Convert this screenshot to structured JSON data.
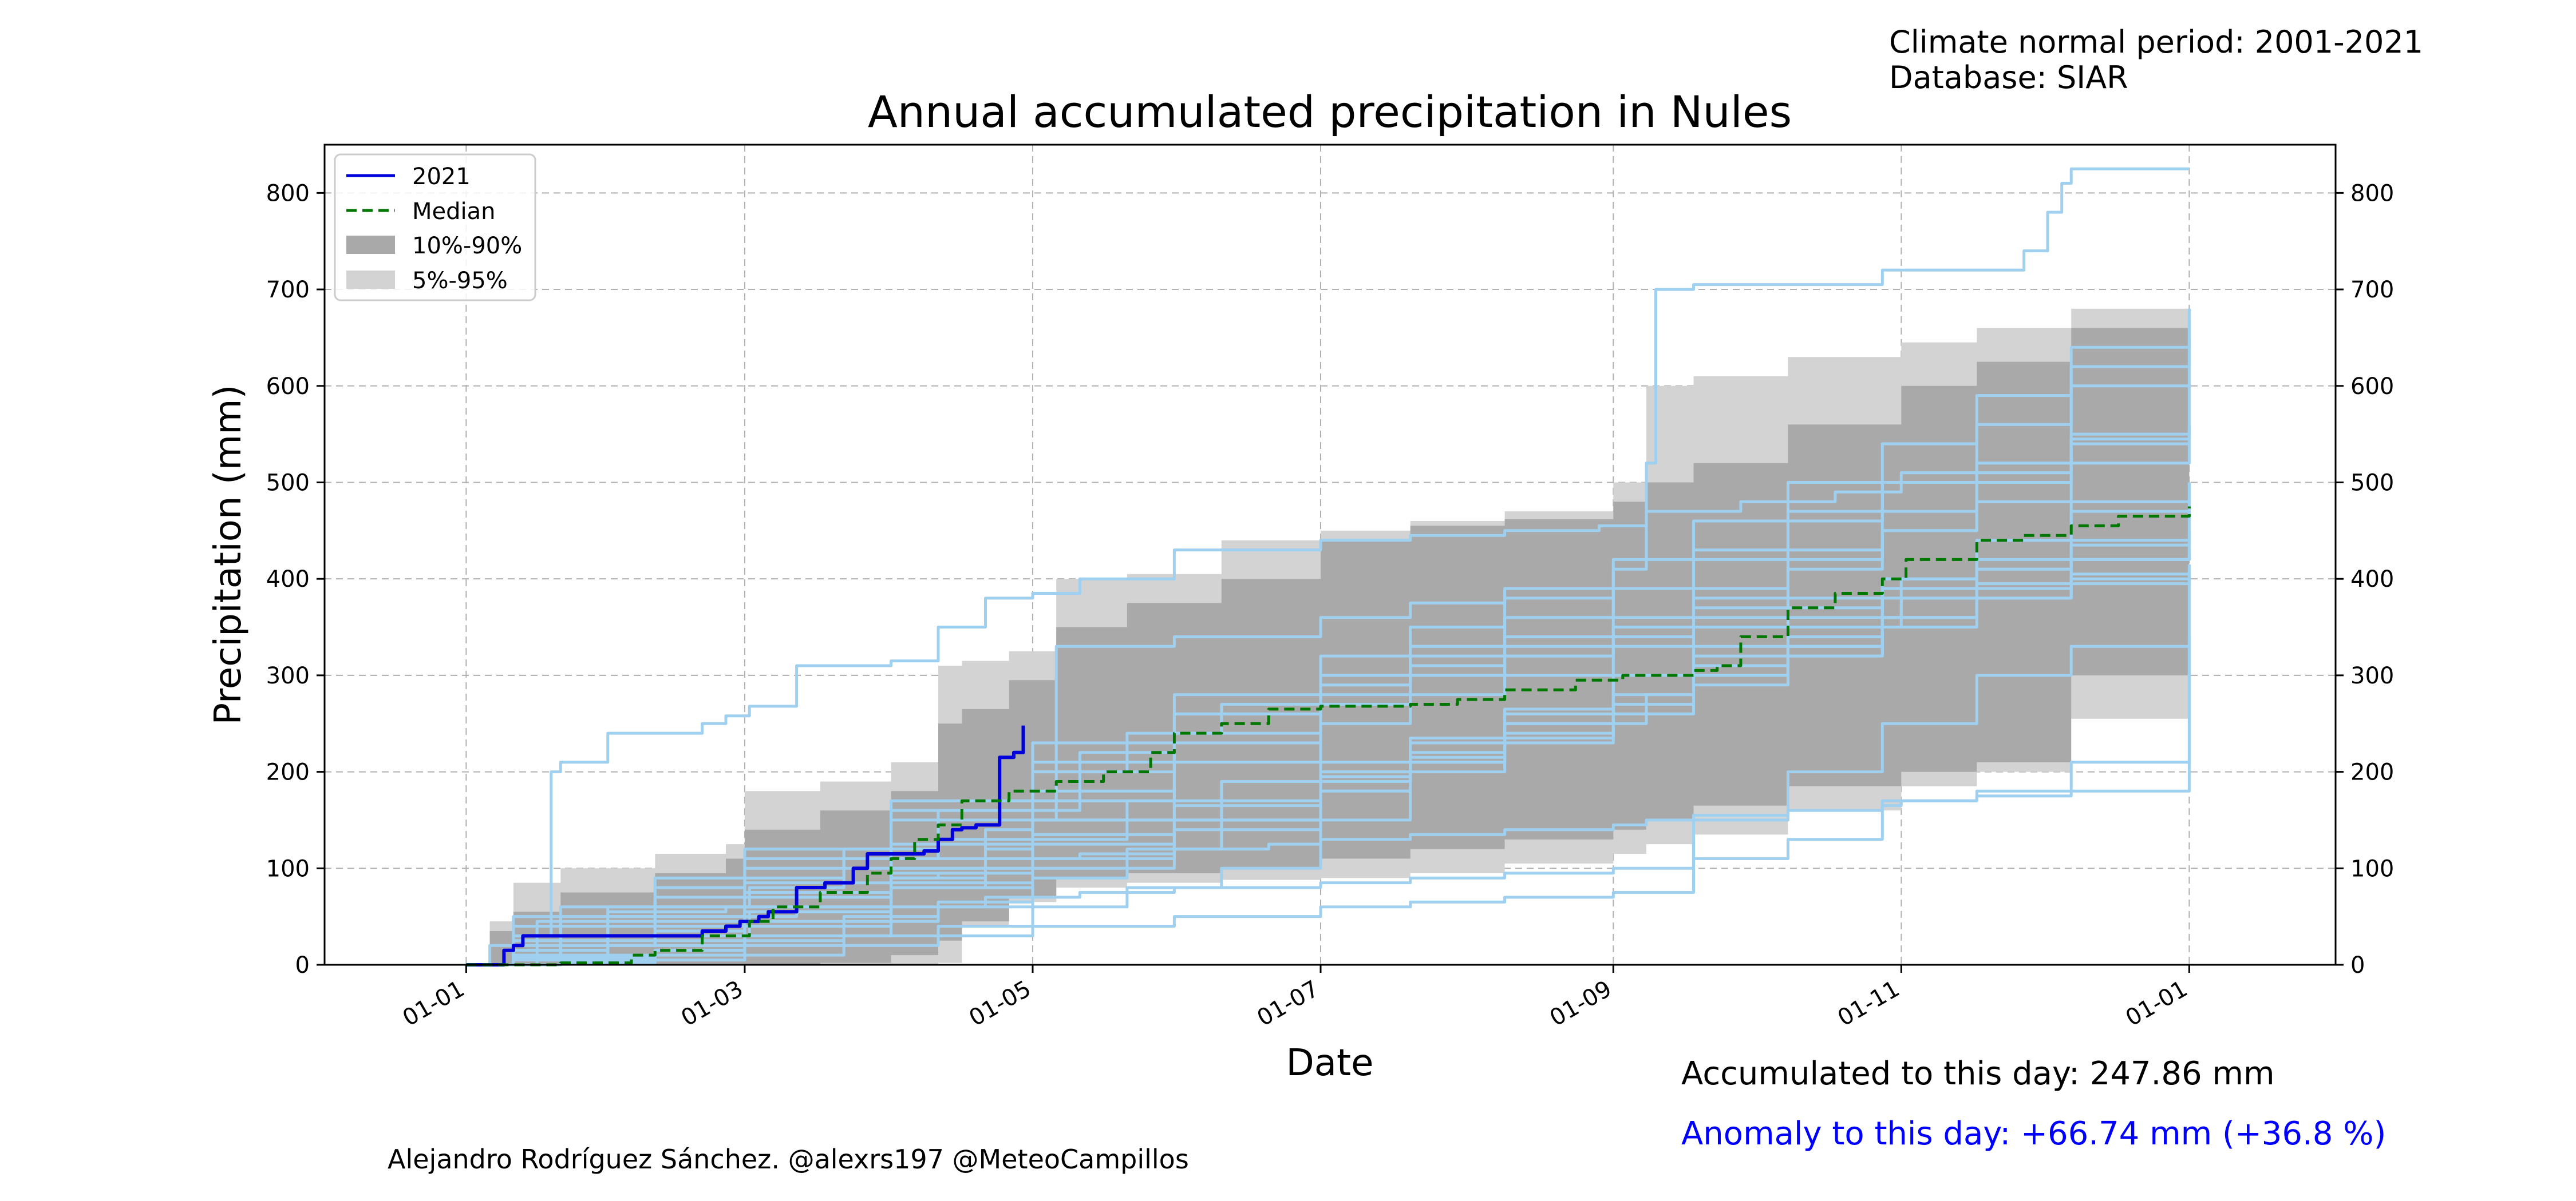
{
  "header": {
    "normal_period": "Climate normal period: 2001-2021",
    "database": "Database: SIAR"
  },
  "footer": {
    "accumulated": "Accumulated to this day: 247.86 mm",
    "anomaly": "Anomaly to this day: +66.74 mm (+36.8 %)",
    "credit": "Alejandro Rodríguez Sánchez. @alexrs197 @MeteoCampillos"
  },
  "colors": {
    "current_year": "#0000dd",
    "median": "#007700",
    "band_10_90": "#a9a9a9",
    "band_5_95": "#d3d3d3",
    "historical_years": "#9fd0f0",
    "anomaly_text": "#0000ff"
  },
  "chart_data": {
    "type": "line",
    "title": "Annual accumulated precipitation in Nules",
    "xlabel": "Date",
    "ylabel": "Precipitation (mm)",
    "xlim": [
      -30,
      396
    ],
    "ylim": [
      0,
      850
    ],
    "x_ticks": [
      {
        "day": 0,
        "label": "01-01"
      },
      {
        "day": 59,
        "label": "01-03"
      },
      {
        "day": 120,
        "label": "01-05"
      },
      {
        "day": 181,
        "label": "01-07"
      },
      {
        "day": 243,
        "label": "01-09"
      },
      {
        "day": 304,
        "label": "01-11"
      },
      {
        "day": 365,
        "label": "01-01"
      }
    ],
    "y_ticks": [
      0,
      100,
      200,
      300,
      400,
      500,
      600,
      700,
      800
    ],
    "grid": true,
    "legend_position": "top-left",
    "legend": [
      "2021",
      "Median",
      "10%-90%",
      "5%-95%"
    ],
    "bands": [
      {
        "name": "5%-95%",
        "x": [
          0,
          5,
          10,
          20,
          40,
          55,
          59,
          75,
          90,
          100,
          105,
          115,
          125,
          140,
          160,
          181,
          200,
          220,
          243,
          250,
          260,
          280,
          304,
          320,
          340,
          365
        ],
        "upper": [
          0,
          45,
          85,
          100,
          115,
          125,
          180,
          190,
          210,
          310,
          315,
          325,
          400,
          405,
          440,
          450,
          460,
          470,
          500,
          600,
          610,
          630,
          645,
          660,
          680,
          685
        ],
        "lower": [
          0,
          0,
          0,
          0,
          0,
          0,
          0,
          0,
          0,
          2,
          40,
          65,
          80,
          85,
          88,
          90,
          95,
          105,
          115,
          125,
          135,
          160,
          185,
          200,
          255,
          270
        ]
      },
      {
        "name": "10%-90%",
        "x": [
          0,
          5,
          10,
          20,
          40,
          55,
          59,
          75,
          90,
          100,
          105,
          115,
          125,
          140,
          160,
          181,
          200,
          220,
          243,
          250,
          260,
          280,
          304,
          320,
          340,
          365
        ],
        "upper": [
          0,
          35,
          55,
          75,
          95,
          110,
          140,
          160,
          180,
          250,
          265,
          295,
          350,
          375,
          400,
          440,
          455,
          462,
          480,
          500,
          520,
          560,
          600,
          625,
          660,
          670
        ],
        "lower": [
          0,
          0,
          0,
          0,
          0,
          0,
          0,
          2,
          10,
          25,
          45,
          70,
          90,
          95,
          100,
          110,
          120,
          130,
          140,
          150,
          165,
          185,
          200,
          210,
          300,
          365
        ]
      }
    ],
    "series": [
      {
        "name": "2021",
        "role": "current",
        "x": [
          0,
          5,
          8,
          10,
          12,
          25,
          40,
          50,
          55,
          58,
          62,
          64,
          69,
          70,
          75,
          76,
          80,
          82,
          85,
          88,
          90,
          92,
          95,
          97,
          100,
          103,
          105,
          108,
          110,
          112,
          113,
          116,
          118
        ],
        "y": [
          0,
          0,
          15,
          20,
          30,
          30,
          30,
          35,
          40,
          45,
          50,
          55,
          55,
          80,
          80,
          85,
          85,
          100,
          115,
          115,
          115,
          115,
          115,
          118,
          130,
          140,
          142,
          145,
          145,
          145,
          215,
          220,
          248
        ]
      },
      {
        "name": "Median",
        "role": "median",
        "x": [
          0,
          10,
          20,
          35,
          40,
          50,
          60,
          65,
          75,
          85,
          90,
          95,
          100,
          105,
          115,
          125,
          135,
          145,
          150,
          160,
          170,
          181,
          200,
          210,
          220,
          235,
          245,
          260,
          265,
          270,
          280,
          290,
          300,
          305,
          320,
          330,
          340,
          350,
          365
        ],
        "y": [
          0,
          0,
          2,
          10,
          15,
          30,
          45,
          60,
          75,
          95,
          110,
          130,
          145,
          170,
          180,
          190,
          200,
          220,
          240,
          250,
          265,
          268,
          270,
          275,
          285,
          295,
          300,
          305,
          310,
          340,
          370,
          385,
          400,
          420,
          440,
          445,
          455,
          465,
          475
        ]
      }
    ],
    "historical_years": [
      {
        "x": [
          0,
          10,
          18,
          20,
          30,
          50,
          55,
          60,
          70,
          90,
          100,
          110,
          120,
          130,
          150,
          181,
          200,
          220,
          240,
          250,
          252,
          260,
          300,
          330,
          335,
          338,
          340,
          365
        ],
        "y": [
          0,
          30,
          200,
          210,
          240,
          250,
          258,
          268,
          310,
          315,
          350,
          380,
          385,
          400,
          430,
          440,
          445,
          450,
          455,
          520,
          700,
          705,
          720,
          740,
          780,
          810,
          825,
          825
        ]
      },
      {
        "x": [
          0,
          5,
          10,
          30,
          55,
          60,
          80,
          90,
          100,
          110,
          120,
          130,
          150,
          170,
          181,
          200,
          220,
          243,
          250,
          260,
          280,
          300,
          304,
          320,
          340,
          365
        ],
        "y": [
          0,
          20,
          40,
          55,
          60,
          80,
          85,
          90,
          95,
          100,
          110,
          115,
          120,
          125,
          130,
          135,
          140,
          145,
          150,
          155,
          160,
          165,
          170,
          175,
          180,
          410
        ]
      },
      {
        "x": [
          0,
          10,
          20,
          40,
          60,
          80,
          100,
          110,
          130,
          150,
          181,
          200,
          220,
          243,
          260,
          280,
          300,
          320,
          340,
          365
        ],
        "y": [
          0,
          10,
          20,
          30,
          40,
          50,
          60,
          70,
          75,
          80,
          85,
          90,
          95,
          100,
          110,
          130,
          170,
          180,
          210,
          340
        ]
      },
      {
        "x": [
          0,
          10,
          30,
          59,
          60,
          90,
          110,
          120,
          125,
          150,
          181,
          200,
          220,
          243,
          250,
          270,
          290,
          304,
          320,
          340,
          365
        ],
        "y": [
          0,
          5,
          20,
          40,
          55,
          80,
          120,
          150,
          330,
          340,
          360,
          375,
          390,
          410,
          470,
          480,
          490,
          510,
          520,
          540,
          560
        ]
      },
      {
        "x": [
          0,
          15,
          30,
          59,
          80,
          100,
          120,
          140,
          160,
          181,
          200,
          220,
          243,
          260,
          280,
          300,
          304,
          320,
          340,
          365
        ],
        "y": [
          0,
          5,
          10,
          20,
          30,
          40,
          60,
          80,
          100,
          150,
          200,
          250,
          270,
          300,
          330,
          360,
          400,
          440,
          470,
          500
        ]
      },
      {
        "x": [
          0,
          20,
          40,
          59,
          80,
          100,
          120,
          140,
          160,
          181,
          200,
          220,
          243,
          250,
          260,
          280,
          300,
          320,
          340,
          365
        ],
        "y": [
          0,
          8,
          15,
          25,
          45,
          65,
          90,
          120,
          150,
          180,
          210,
          230,
          250,
          280,
          300,
          320,
          350,
          380,
          420,
          450
        ]
      },
      {
        "x": [
          0,
          10,
          30,
          59,
          70,
          90,
          110,
          120,
          140,
          160,
          181,
          200,
          220,
          243,
          260,
          280,
          300,
          304,
          320,
          340,
          365
        ],
        "y": [
          0,
          15,
          30,
          50,
          70,
          90,
          110,
          130,
          150,
          170,
          195,
          215,
          235,
          260,
          290,
          320,
          350,
          380,
          410,
          440,
          470
        ]
      },
      {
        "x": [
          0,
          20,
          40,
          59,
          80,
          100,
          120,
          150,
          181,
          200,
          220,
          243,
          260,
          280,
          300,
          320,
          340,
          365
        ],
        "y": [
          0,
          2,
          5,
          10,
          20,
          30,
          40,
          50,
          60,
          65,
          70,
          75,
          150,
          200,
          250,
          300,
          330,
          335
        ]
      },
      {
        "x": [
          0,
          10,
          30,
          59,
          80,
          100,
          120,
          140,
          160,
          181,
          200,
          220,
          243,
          260,
          280,
          300,
          320,
          340,
          365
        ],
        "y": [
          0,
          25,
          60,
          90,
          110,
          130,
          150,
          170,
          190,
          210,
          230,
          250,
          270,
          300,
          330,
          360,
          390,
          420,
          430
        ]
      },
      {
        "x": [
          0,
          10,
          30,
          59,
          90,
          110,
          120,
          140,
          160,
          181,
          200,
          220,
          243,
          260,
          280,
          300,
          320,
          340,
          365
        ],
        "y": [
          0,
          30,
          50,
          70,
          100,
          140,
          200,
          240,
          270,
          300,
          320,
          340,
          360,
          380,
          420,
          450,
          480,
          520,
          540
        ]
      },
      {
        "x": [
          0,
          20,
          40,
          59,
          80,
          100,
          130,
          150,
          181,
          200,
          220,
          243,
          260,
          280,
          300,
          320,
          340,
          365
        ],
        "y": [
          0,
          40,
          60,
          85,
          120,
          160,
          220,
          260,
          290,
          310,
          330,
          350,
          390,
          430,
          470,
          500,
          550,
          600
        ]
      },
      {
        "x": [
          0,
          10,
          40,
          59,
          90,
          120,
          150,
          181,
          200,
          220,
          243,
          260,
          280,
          300,
          320,
          340,
          365
        ],
        "y": [
          0,
          50,
          70,
          100,
          150,
          200,
          240,
          280,
          300,
          320,
          340,
          370,
          410,
          450,
          510,
          600,
          650
        ]
      },
      {
        "x": [
          0,
          15,
          40,
          59,
          90,
          120,
          150,
          181,
          200,
          220,
          243,
          260,
          280,
          300,
          320,
          340,
          365
        ],
        "y": [
          0,
          45,
          80,
          110,
          160,
          210,
          260,
          300,
          330,
          360,
          390,
          420,
          460,
          500,
          560,
          620,
          670
        ]
      },
      {
        "x": [
          0,
          20,
          40,
          59,
          90,
          120,
          150,
          181,
          200,
          220,
          243,
          260,
          280,
          300,
          320,
          340,
          365
        ],
        "y": [
          0,
          60,
          90,
          120,
          170,
          230,
          280,
          320,
          350,
          380,
          420,
          460,
          500,
          540,
          590,
          640,
          680
        ]
      },
      {
        "x": [
          0,
          10,
          30,
          59,
          90,
          120,
          150,
          181,
          200,
          220,
          243,
          260,
          280,
          300,
          320,
          340,
          365
        ],
        "y": [
          0,
          10,
          20,
          40,
          80,
          110,
          150,
          190,
          220,
          250,
          280,
          300,
          330,
          360,
          380,
          400,
          410
        ]
      },
      {
        "x": [
          0,
          10,
          30,
          59,
          90,
          120,
          150,
          181,
          200,
          220,
          243,
          260,
          280,
          300,
          320,
          340,
          365
        ],
        "y": [
          0,
          15,
          30,
          55,
          95,
          135,
          170,
          200,
          230,
          260,
          300,
          320,
          340,
          360,
          380,
          395,
          400
        ]
      },
      {
        "x": [
          0,
          10,
          40,
          59,
          90,
          120,
          150,
          181,
          200,
          220,
          243,
          260,
          280,
          300,
          320,
          340,
          365
        ],
        "y": [
          0,
          20,
          45,
          60,
          100,
          150,
          210,
          250,
          280,
          300,
          330,
          350,
          370,
          390,
          410,
          420,
          430
        ]
      },
      {
        "x": [
          0,
          20,
          40,
          59,
          90,
          120,
          150,
          181,
          200,
          220,
          243,
          260,
          280,
          300,
          320,
          340,
          365
        ],
        "y": [
          0,
          5,
          15,
          30,
          60,
          100,
          140,
          180,
          210,
          240,
          270,
          310,
          350,
          400,
          440,
          480,
          500
        ]
      },
      {
        "x": [
          0,
          20,
          40,
          59,
          90,
          120,
          150,
          181,
          200,
          220,
          243,
          260,
          280,
          300,
          320,
          340,
          365
        ],
        "y": [
          0,
          20,
          35,
          60,
          110,
          170,
          230,
          270,
          300,
          320,
          340,
          360,
          380,
          400,
          420,
          435,
          440
        ]
      },
      {
        "x": [
          0,
          10,
          30,
          59,
          90,
          120,
          150,
          181,
          200,
          220,
          243,
          260,
          280,
          300,
          320,
          340,
          365
        ],
        "y": [
          0,
          25,
          40,
          75,
          125,
          180,
          230,
          290,
          330,
          360,
          390,
          430,
          470,
          500,
          520,
          545,
          560
        ]
      },
      {
        "x": [
          0,
          10,
          30,
          59,
          90,
          120,
          150,
          181,
          200,
          220,
          243,
          260,
          280,
          300,
          320,
          340,
          365
        ],
        "y": [
          0,
          8,
          25,
          45,
          85,
          125,
          165,
          200,
          235,
          265,
          300,
          330,
          360,
          380,
          395,
          405,
          415
        ]
      }
    ]
  }
}
